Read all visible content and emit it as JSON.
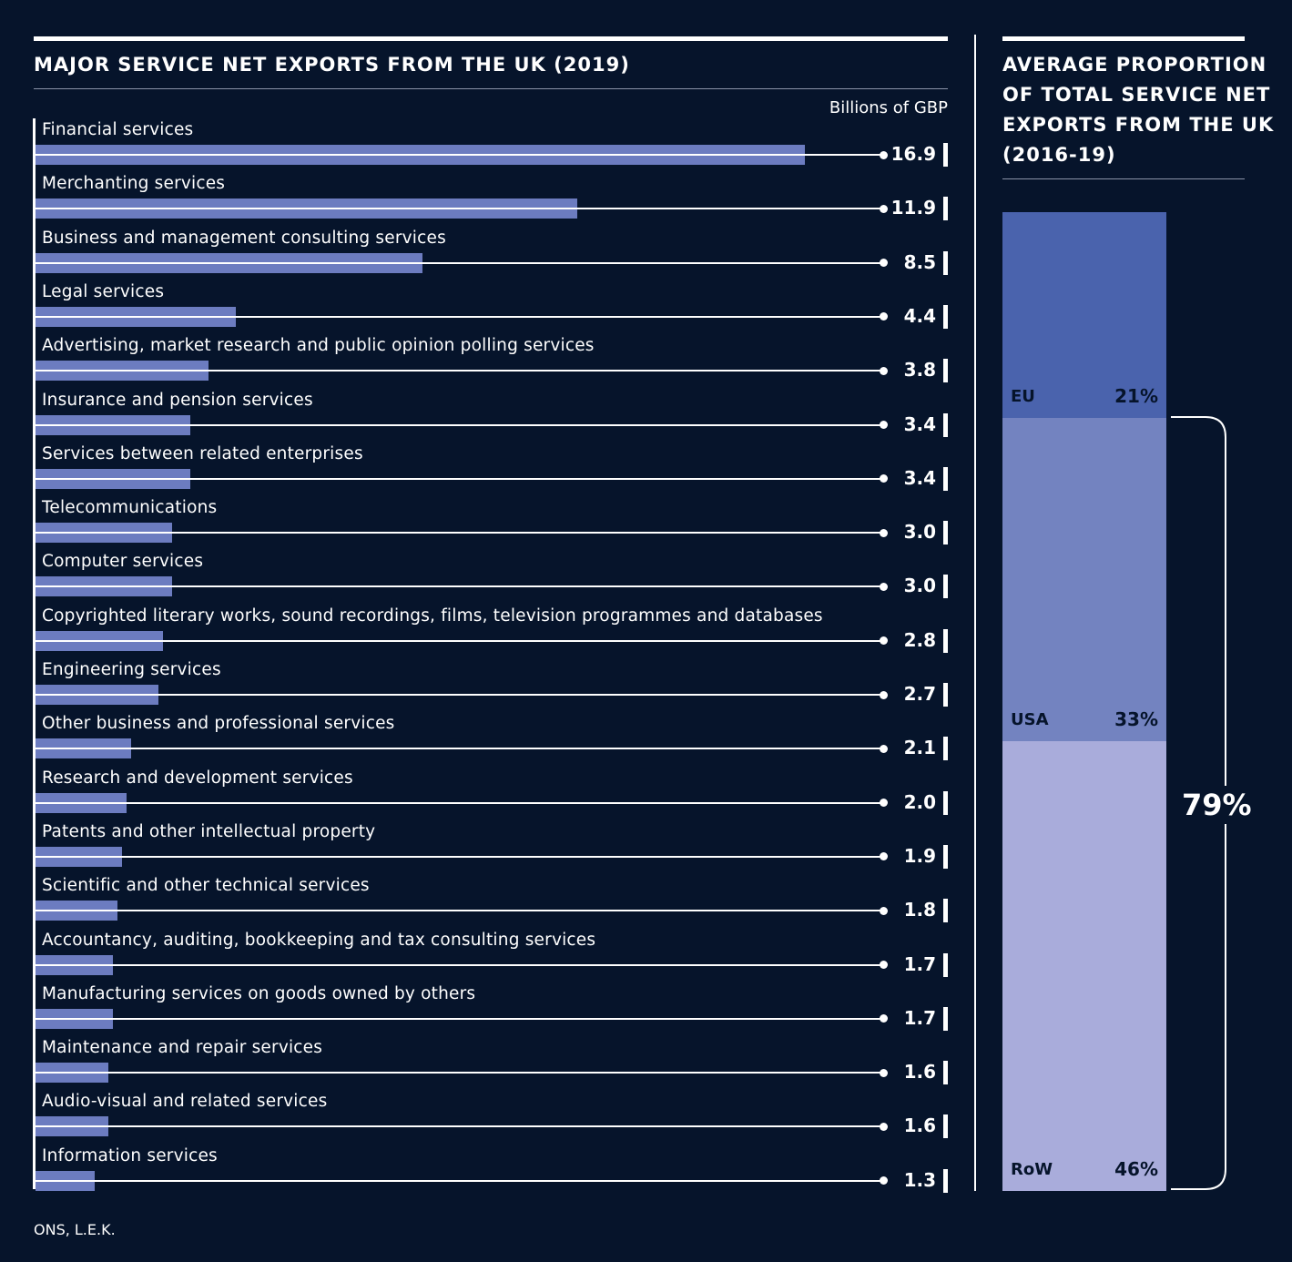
{
  "chart_data": [
    {
      "type": "bar",
      "orientation": "horizontal",
      "title": "MAJOR SERVICE NET EXPORTS FROM THE UK (2019)",
      "unit": "Billions of GBP",
      "categories": [
        "Financial services",
        "Merchanting services",
        "Business and management consulting services",
        "Legal services",
        "Advertising, market research and public opinion polling services",
        "Insurance and pension services",
        "Services between related enterprises",
        "Telecommunications",
        "Computer services",
        "Copyrighted literary works, sound recordings, films, television programmes and databases",
        "Engineering services",
        "Other business and professional services",
        "Research and development services",
        "Patents and other intellectual property",
        "Scientific and other technical services",
        "Accountancy, auditing, bookkeeping and tax consulting services",
        "Manufacturing services on goods owned by others",
        "Maintenance and repair services",
        "Audio-visual and related services",
        "Information services"
      ],
      "values": [
        16.9,
        11.9,
        8.5,
        4.4,
        3.8,
        3.4,
        3.4,
        3.0,
        3.0,
        2.8,
        2.7,
        2.1,
        2.0,
        1.9,
        1.8,
        1.7,
        1.7,
        1.6,
        1.6,
        1.3
      ],
      "value_labels": [
        "16.9",
        "11.9",
        "8.5",
        "4.4",
        "3.8",
        "3.4",
        "3.4",
        "3.0",
        "3.0",
        "2.8",
        "2.7",
        "2.1",
        "2.0",
        "1.9",
        "1.8",
        "1.7",
        "1.7",
        "1.6",
        "1.6",
        "1.3"
      ],
      "xlim": [
        0,
        17
      ],
      "bar_color": "#6c7cc0"
    },
    {
      "type": "bar",
      "stacked": true,
      "title": "AVERAGE PROPORTION OF TOTAL SERVICE NET EXPORTS FROM THE UK (2016-19)",
      "segments": [
        {
          "name": "EU",
          "value": 21,
          "label": "21%",
          "color": "#4a63ad"
        },
        {
          "name": "USA",
          "value": 33,
          "label": "33%",
          "color": "#7383c0"
        },
        {
          "name": "RoW",
          "value": 46,
          "label": "46%",
          "color": "#a9acdb"
        }
      ],
      "bracket_label": "79%"
    }
  ],
  "left_title_lines": [
    "MAJOR SERVICE NET EXPORTS FROM THE UK (2019)"
  ],
  "right_title_lines": [
    "AVERAGE PROPORTION",
    "OF TOTAL SERVICE NET",
    "EXPORTS FROM THE UK",
    "(2016-19)"
  ],
  "unit_label": "Billions of GBP",
  "source": "ONS, L.E.K."
}
